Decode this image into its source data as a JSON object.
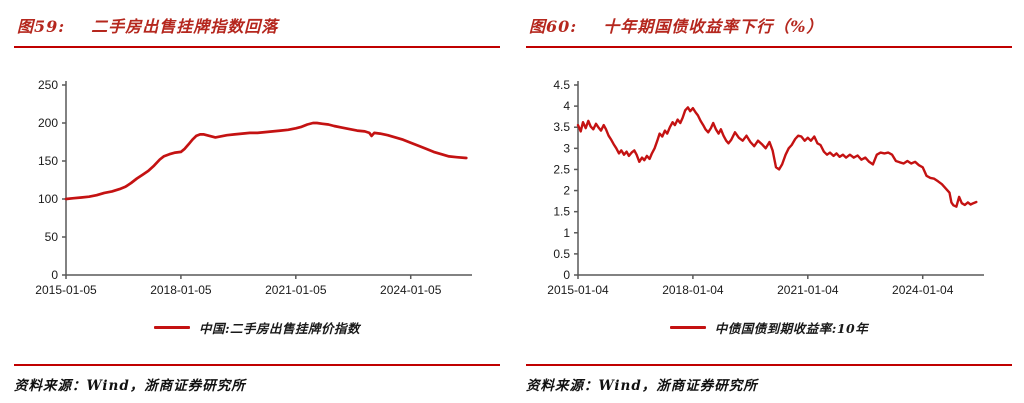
{
  "colors": {
    "title_red": "#b5271e",
    "rule_red": "#c00000",
    "line_red": "#c41212",
    "axis_gray": "#595959"
  },
  "chart_data": [
    {
      "type": "line",
      "fig_label": "图59:",
      "title": "二手房出售挂牌指数回落",
      "legend": "中国:二手房出售挂牌价指数",
      "source": "资料来源：Wind，浙商证券研究所",
      "xlabel": "",
      "ylabel": "",
      "grid": false,
      "legend_position": "bottom-center",
      "axis_color": "#595959",
      "x_unit": "years_since_2015-01-05",
      "xlim": [
        0,
        10.6
      ],
      "ylim": [
        0,
        250
      ],
      "xticks": [
        {
          "v": 0,
          "label": "2015-01-05"
        },
        {
          "v": 3,
          "label": "2018-01-05"
        },
        {
          "v": 6,
          "label": "2021-01-05"
        },
        {
          "v": 9,
          "label": "2024-01-05"
        }
      ],
      "yticks": [
        {
          "v": 0,
          "label": "0"
        },
        {
          "v": 50,
          "label": "50"
        },
        {
          "v": 100,
          "label": "100"
        },
        {
          "v": 150,
          "label": "150"
        },
        {
          "v": 200,
          "label": "200"
        },
        {
          "v": 250,
          "label": "250"
        }
      ],
      "series": [
        {
          "name": "中国:二手房出售挂牌价指数",
          "color": "#c41212",
          "width": 2.7,
          "x": [
            0,
            0.2,
            0.4,
            0.6,
            0.8,
            1.0,
            1.2,
            1.4,
            1.55,
            1.7,
            1.85,
            2.0,
            2.15,
            2.3,
            2.45,
            2.55,
            2.7,
            2.85,
            3.0,
            3.1,
            3.2,
            3.3,
            3.4,
            3.5,
            3.6,
            3.75,
            3.9,
            4.0,
            4.2,
            4.4,
            4.6,
            4.8,
            5.0,
            5.2,
            5.4,
            5.6,
            5.8,
            6.0,
            6.15,
            6.3,
            6.45,
            6.55,
            6.7,
            6.85,
            7.0,
            7.2,
            7.4,
            7.6,
            7.8,
            7.92,
            7.98,
            8.05,
            8.2,
            8.4,
            8.6,
            8.8,
            9.0,
            9.2,
            9.4,
            9.6,
            9.8,
            10.0,
            10.2,
            10.45
          ],
          "y": [
            100,
            101,
            102,
            103,
            105,
            108,
            110,
            113,
            116,
            121,
            127,
            132,
            137,
            144,
            152,
            156,
            159,
            161,
            162,
            166,
            172,
            178,
            183,
            185,
            185,
            183,
            181,
            182,
            184,
            185,
            186,
            187,
            187,
            188,
            189,
            190,
            191,
            193,
            195,
            198,
            200,
            200,
            199,
            198,
            196,
            194,
            192,
            190,
            189,
            187,
            183,
            187,
            186,
            184,
            181,
            178,
            174,
            170,
            166,
            162,
            159,
            156,
            155,
            154
          ]
        }
      ]
    },
    {
      "type": "line",
      "fig_label": "图60:",
      "title": "十年期国债收益率下行（%）",
      "legend": "中债国债到期收益率:10年",
      "source": "资料来源：Wind，浙商证券研究所",
      "xlabel": "",
      "ylabel": "",
      "grid": false,
      "legend_position": "bottom-center",
      "axis_color": "#595959",
      "x_unit": "years_since_2015-01-04",
      "xlim": [
        0,
        10.6
      ],
      "ylim": [
        0,
        4.5
      ],
      "xticks": [
        {
          "v": 0,
          "label": "2015-01-04"
        },
        {
          "v": 3,
          "label": "2018-01-04"
        },
        {
          "v": 6,
          "label": "2021-01-04"
        },
        {
          "v": 9,
          "label": "2024-01-04"
        }
      ],
      "yticks": [
        {
          "v": 0,
          "label": "0"
        },
        {
          "v": 0.5,
          "label": "0.5"
        },
        {
          "v": 1,
          "label": "1"
        },
        {
          "v": 1.5,
          "label": "1.5"
        },
        {
          "v": 2,
          "label": "2"
        },
        {
          "v": 2.5,
          "label": "2.5"
        },
        {
          "v": 3,
          "label": "3"
        },
        {
          "v": 3.5,
          "label": "3.5"
        },
        {
          "v": 4,
          "label": "4"
        },
        {
          "v": 4.5,
          "label": "4.5"
        }
      ],
      "series": [
        {
          "name": "中债国债到期收益率:10年",
          "color": "#c41212",
          "width": 2.4,
          "x": [
            0,
            0.07,
            0.13,
            0.2,
            0.27,
            0.33,
            0.4,
            0.47,
            0.53,
            0.6,
            0.67,
            0.73,
            0.8,
            0.87,
            0.93,
            1.0,
            1.07,
            1.13,
            1.2,
            1.27,
            1.33,
            1.4,
            1.47,
            1.53,
            1.6,
            1.67,
            1.73,
            1.8,
            1.87,
            1.93,
            2.0,
            2.07,
            2.13,
            2.2,
            2.27,
            2.33,
            2.4,
            2.47,
            2.53,
            2.6,
            2.67,
            2.73,
            2.8,
            2.87,
            2.93,
            3.0,
            3.07,
            3.13,
            3.2,
            3.27,
            3.33,
            3.4,
            3.47,
            3.53,
            3.6,
            3.67,
            3.73,
            3.8,
            3.87,
            3.93,
            4.0,
            4.1,
            4.2,
            4.3,
            4.4,
            4.5,
            4.6,
            4.7,
            4.8,
            4.9,
            5.0,
            5.08,
            5.17,
            5.25,
            5.33,
            5.42,
            5.5,
            5.58,
            5.67,
            5.75,
            5.83,
            5.92,
            6.0,
            6.08,
            6.17,
            6.25,
            6.33,
            6.42,
            6.5,
            6.58,
            6.67,
            6.75,
            6.83,
            6.92,
            7.0,
            7.1,
            7.2,
            7.3,
            7.4,
            7.5,
            7.6,
            7.7,
            7.8,
            7.9,
            8.0,
            8.1,
            8.2,
            8.3,
            8.4,
            8.5,
            8.6,
            8.7,
            8.8,
            8.9,
            9.0,
            9.1,
            9.2,
            9.3,
            9.4,
            9.5,
            9.6,
            9.7,
            9.75,
            9.8,
            9.88,
            9.95,
            10.02,
            10.1,
            10.18,
            10.25,
            10.32,
            10.4
          ],
          "y": [
            3.55,
            3.4,
            3.62,
            3.48,
            3.65,
            3.52,
            3.45,
            3.58,
            3.5,
            3.42,
            3.55,
            3.45,
            3.3,
            3.2,
            3.1,
            3.0,
            2.88,
            2.95,
            2.85,
            2.92,
            2.82,
            2.9,
            2.95,
            2.85,
            2.68,
            2.78,
            2.72,
            2.82,
            2.75,
            2.88,
            3.0,
            3.18,
            3.35,
            3.28,
            3.42,
            3.35,
            3.5,
            3.62,
            3.55,
            3.68,
            3.6,
            3.72,
            3.9,
            3.97,
            3.88,
            3.95,
            3.85,
            3.78,
            3.65,
            3.55,
            3.45,
            3.38,
            3.48,
            3.6,
            3.45,
            3.35,
            3.45,
            3.3,
            3.18,
            3.12,
            3.2,
            3.38,
            3.25,
            3.18,
            3.3,
            3.15,
            3.05,
            3.18,
            3.1,
            3.0,
            3.15,
            2.95,
            2.55,
            2.5,
            2.62,
            2.85,
            3.0,
            3.08,
            3.22,
            3.3,
            3.28,
            3.18,
            3.25,
            3.18,
            3.28,
            3.12,
            3.08,
            2.92,
            2.85,
            2.9,
            2.82,
            2.88,
            2.8,
            2.85,
            2.78,
            2.85,
            2.78,
            2.83,
            2.73,
            2.78,
            2.68,
            2.62,
            2.85,
            2.9,
            2.88,
            2.9,
            2.85,
            2.7,
            2.67,
            2.64,
            2.7,
            2.64,
            2.68,
            2.6,
            2.55,
            2.35,
            2.3,
            2.28,
            2.22,
            2.15,
            2.05,
            1.95,
            1.72,
            1.65,
            1.62,
            1.85,
            1.7,
            1.66,
            1.72,
            1.67,
            1.7,
            1.73
          ]
        }
      ]
    }
  ]
}
